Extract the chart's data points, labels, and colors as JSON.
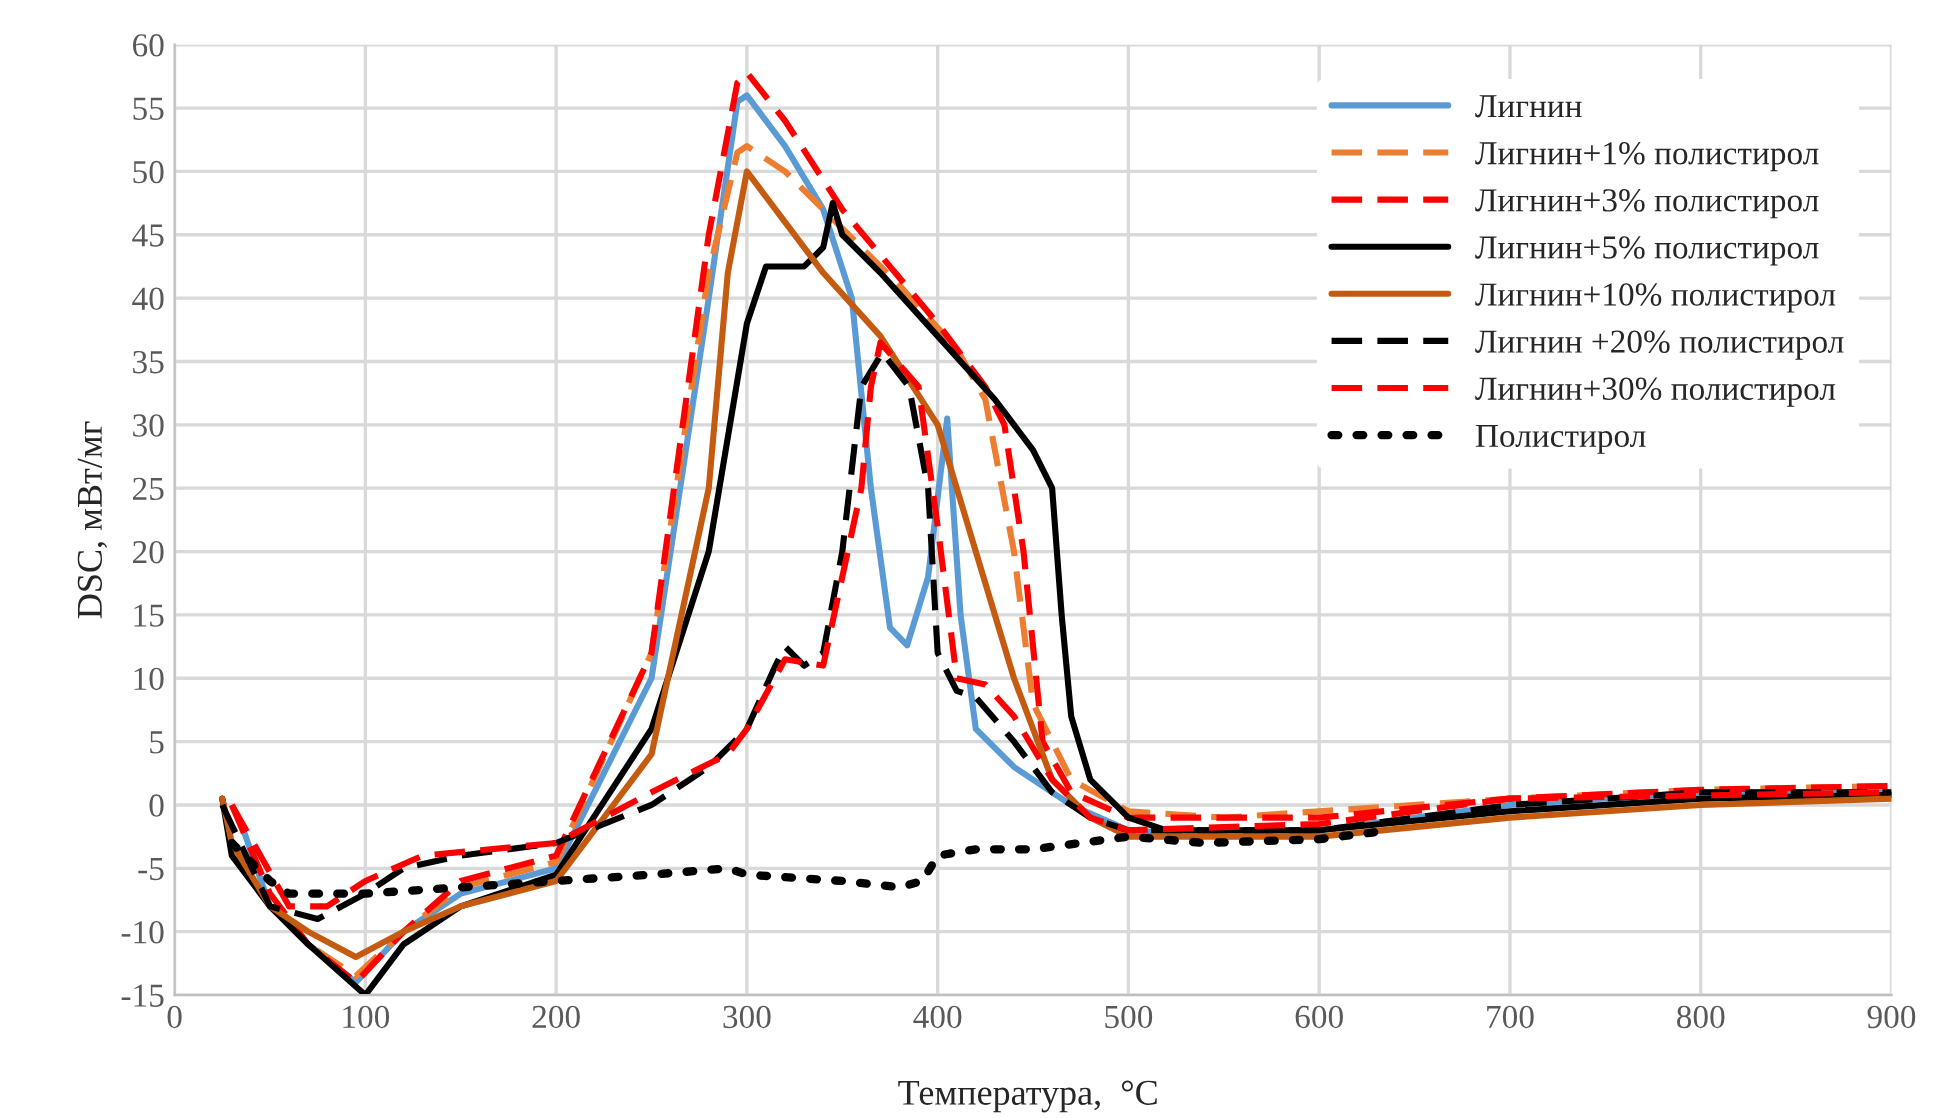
{
  "chart_data": {
    "type": "line",
    "xlabel": "Температура,  °C",
    "ylabel": "DSC, мВт/мг",
    "xlim": [
      0,
      900
    ],
    "xticks": [
      0,
      100,
      200,
      300,
      400,
      500,
      600,
      700,
      800,
      900
    ],
    "ylim": [
      -15,
      60
    ],
    "yticks": [
      -15,
      -10,
      -5,
      0,
      5,
      10,
      15,
      20,
      25,
      30,
      35,
      40,
      45,
      50,
      55,
      60
    ],
    "grid": true,
    "legend": "top right",
    "marker": "none",
    "series": [
      {
        "name": "Лигнин",
        "color": "#5b9bd5",
        "line_style": "solid",
        "x": [
          35,
          50,
          70,
          95,
          120,
          150,
          200,
          250,
          280,
          295,
          300,
          320,
          340,
          355,
          365,
          375,
          384,
          395,
          405,
          412,
          420,
          440,
          470,
          500,
          550,
          600,
          700,
          800,
          900
        ],
        "values": [
          -1.5,
          -8,
          -11,
          -14,
          -10,
          -7,
          -5,
          10,
          40,
          55.5,
          56,
          52,
          47,
          40,
          25,
          14,
          12.6,
          18,
          30.5,
          15,
          6,
          3,
          0,
          -2,
          -2.5,
          -2,
          0,
          1,
          1
        ]
      },
      {
        "name": "Лигнин+1% полистирол",
        "color": "#ed7d31",
        "line_style": "dashed",
        "x": [
          25,
          30,
          50,
          70,
          95,
          120,
          150,
          200,
          250,
          280,
          295,
          300,
          320,
          340,
          380,
          410,
          425,
          440,
          450,
          470,
          500,
          550,
          600,
          700,
          800,
          900
        ],
        "values": [
          0.5,
          -3,
          -8,
          -11,
          -13.5,
          -10,
          -6.5,
          -4.5,
          12,
          42,
          51.5,
          52,
          50,
          47,
          41,
          36,
          32,
          20,
          8,
          2,
          -0.5,
          -1,
          -0.5,
          0.5,
          1.2,
          1.5
        ]
      },
      {
        "name": "Лигнин+3% полистирол",
        "color": "#ff0000",
        "line_style": "dashed",
        "x": [
          30,
          50,
          70,
          95,
          120,
          150,
          200,
          250,
          280,
          295,
          300,
          320,
          350,
          400,
          425,
          435,
          445,
          455,
          470,
          500,
          600,
          700,
          800,
          900
        ],
        "values": [
          0,
          -7,
          -11,
          -14,
          -10,
          -6,
          -4,
          12,
          45,
          57,
          57.8,
          54,
          47,
          38,
          33,
          30,
          20,
          5,
          1,
          -1,
          -1,
          0.5,
          1.2,
          1.5
        ]
      },
      {
        "name": "Лигнин+5% полистирол",
        "color": "#000000",
        "line_style": "solid",
        "x": [
          25,
          30,
          50,
          70,
          100,
          120,
          150,
          200,
          250,
          280,
          300,
          310,
          330,
          340,
          345,
          350,
          370,
          400,
          430,
          450,
          460,
          465,
          470,
          480,
          500,
          520,
          600,
          700,
          800,
          900
        ],
        "values": [
          0.5,
          -4,
          -8,
          -11,
          -15,
          -11,
          -8,
          -5.5,
          6,
          20,
          38,
          42.5,
          42.5,
          44,
          47.5,
          45,
          42,
          37,
          32,
          28,
          25,
          15,
          7,
          2,
          -1,
          -2,
          -2,
          -0.5,
          0.5,
          0.8
        ]
      },
      {
        "name": "Лигнин+10% полистирол",
        "color": "#c55a11",
        "line_style": "solid",
        "x": [
          25,
          30,
          50,
          70,
          95,
          120,
          150,
          200,
          250,
          280,
          290,
          300,
          320,
          340,
          370,
          400,
          420,
          440,
          460,
          480,
          500,
          600,
          700,
          800,
          900
        ],
        "values": [
          0.5,
          -3,
          -8,
          -10,
          -12,
          -10,
          -8,
          -6,
          4,
          25,
          42,
          50,
          46,
          42,
          37,
          30,
          20,
          10,
          2,
          -1,
          -2.5,
          -2.5,
          -1,
          0,
          0.5
        ]
      },
      {
        "name": "Лигнин +20% полистирол",
        "color": "#000000",
        "line_style": "dashed",
        "x": [
          25,
          50,
          75,
          100,
          120,
          150,
          200,
          250,
          280,
          300,
          315,
          320,
          330,
          340,
          350,
          360,
          371,
          385,
          395,
          400,
          410,
          420,
          440,
          460,
          480,
          500,
          600,
          700,
          800,
          900
        ],
        "values": [
          0,
          -8,
          -9,
          -7,
          -5,
          -4,
          -3,
          0,
          3,
          6,
          11,
          12.5,
          11,
          12,
          20,
          33,
          35.7,
          33,
          25,
          12,
          9,
          8.5,
          5,
          1,
          -1,
          -2,
          -2,
          0,
          1,
          1
        ]
      },
      {
        "name": "Лигнин+30% полистирол",
        "color": "#ff0000",
        "line_style": "dashed",
        "x": [
          30,
          60,
          80,
          100,
          130,
          200,
          250,
          290,
          300,
          320,
          340,
          360,
          365,
          370,
          390,
          400,
          410,
          425,
          440,
          460,
          480,
          500,
          600,
          700,
          900
        ],
        "values": [
          0,
          -8,
          -8,
          -6,
          -4,
          -3,
          1,
          4,
          6,
          11.5,
          11,
          25,
          33,
          36.5,
          33,
          22,
          10,
          9.5,
          7,
          2,
          -1,
          -2,
          -1.5,
          0.5,
          1
        ]
      },
      {
        "name": "Полистирол",
        "color": "#000000",
        "line_style": "dotted",
        "x": [
          30,
          50,
          60,
          100,
          150,
          200,
          250,
          290,
          300,
          350,
          380,
          392,
          400,
          420,
          450,
          500,
          540,
          600,
          637
        ],
        "values": [
          -3,
          -6,
          -7,
          -7,
          -6.5,
          -6,
          -5.5,
          -5,
          -5.5,
          -6,
          -6.5,
          -6,
          -4,
          -3.5,
          -3.5,
          -2.5,
          -3,
          -2.7,
          -2
        ]
      }
    ]
  }
}
